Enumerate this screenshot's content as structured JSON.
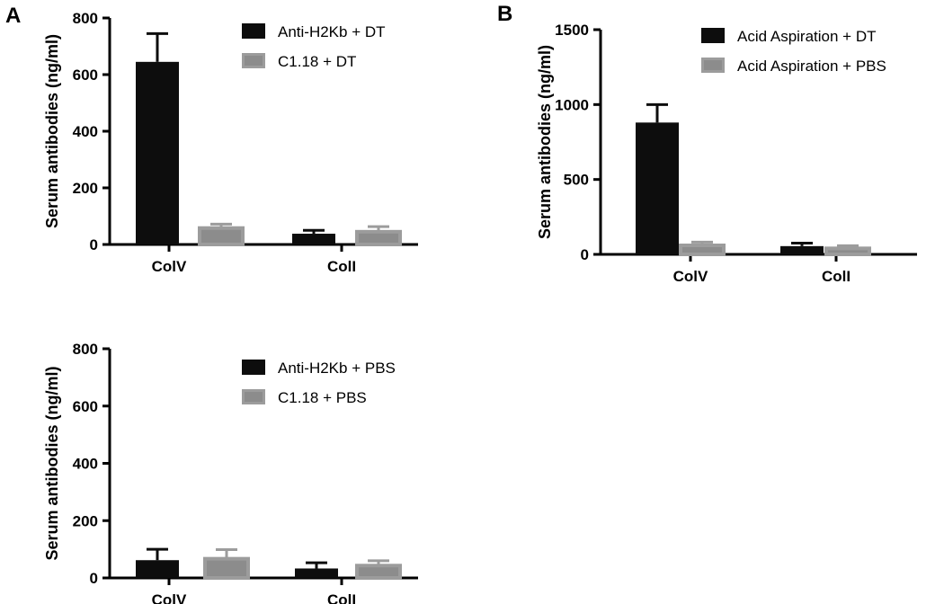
{
  "panels": {
    "a": "A",
    "b": "B"
  },
  "colors": {
    "series1": "#0d0d0d",
    "series2": "#9c9c9c",
    "series2_inner": "#8c8c8c",
    "axis": "#000000"
  },
  "chart_data": [
    {
      "type": "bar",
      "panel": "A",
      "ylabel": "Serum antibodies (ng/ml)",
      "ylim": [
        0,
        800
      ],
      "yticks": [
        0,
        200,
        400,
        600,
        800
      ],
      "categories": [
        "ColV",
        "ColI"
      ],
      "series": [
        {
          "name": "Anti-H2Kb + DT",
          "values": [
            645,
            38
          ],
          "errors": [
            100,
            12
          ]
        },
        {
          "name": "C1.18 + DT",
          "values": [
            58,
            45
          ],
          "errors": [
            14,
            18
          ]
        }
      ],
      "legend": "top-right",
      "grid": false
    },
    {
      "type": "bar",
      "panel": "B",
      "ylabel": "Serum antibodies (ng/ml)",
      "ylim": [
        0,
        1500
      ],
      "yticks": [
        0,
        500,
        1000,
        1500
      ],
      "categories": [
        "ColV",
        "ColI"
      ],
      "series": [
        {
          "name": "Acid Aspiration + DT",
          "values": [
            880,
            55
          ],
          "errors": [
            120,
            20
          ]
        },
        {
          "name": "Acid Aspiration + PBS",
          "values": [
            60,
            40
          ],
          "errors": [
            22,
            18
          ]
        }
      ],
      "legend": "top-right",
      "grid": false
    },
    {
      "type": "bar",
      "panel": "A",
      "ylabel": "Serum antibodies (ng/ml)",
      "ylim": [
        0,
        800
      ],
      "yticks": [
        0,
        200,
        400,
        600,
        800
      ],
      "categories": [
        "ColV",
        "ColI"
      ],
      "series": [
        {
          "name": "Anti-H2Kb + PBS",
          "values": [
            62,
            33
          ],
          "errors": [
            38,
            20
          ]
        },
        {
          "name": "C1.18 + PBS",
          "values": [
            67,
            43
          ],
          "errors": [
            32,
            17
          ]
        }
      ],
      "legend": "top-right",
      "grid": false
    }
  ]
}
